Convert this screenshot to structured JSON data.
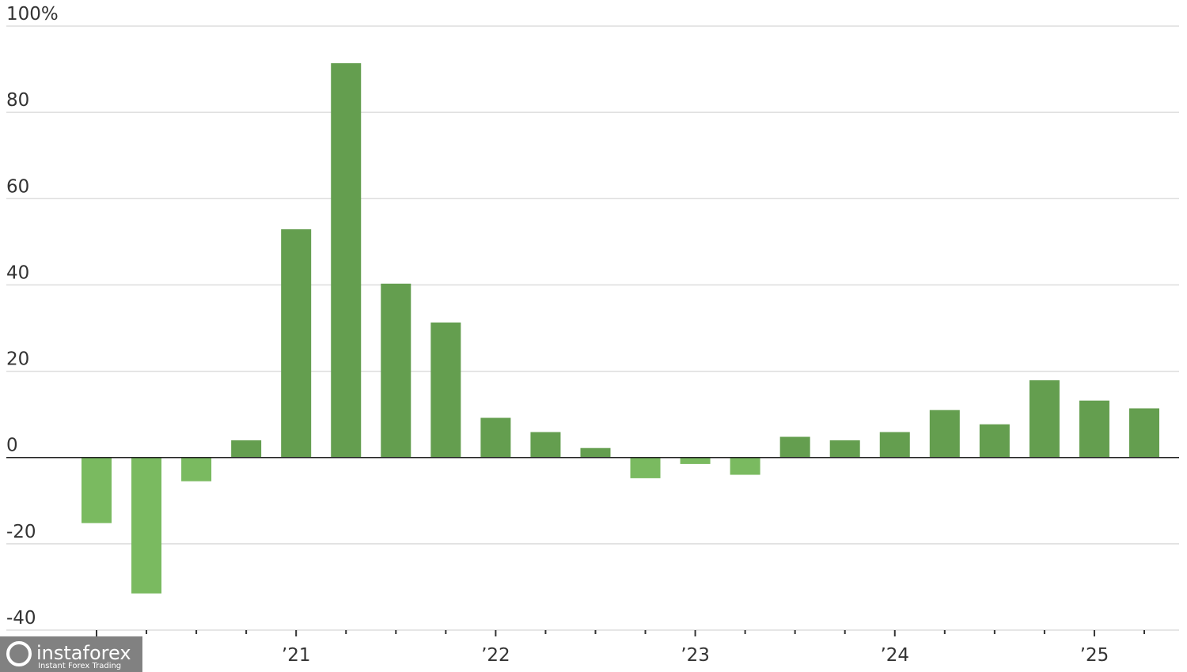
{
  "chart_data": {
    "type": "bar",
    "categories": [
      null,
      null,
      null,
      null,
      "’21",
      null,
      null,
      null,
      "’22",
      null,
      null,
      null,
      "’23",
      null,
      null,
      null,
      "’24",
      null,
      null,
      null,
      "’25",
      null
    ],
    "values": [
      -15.2,
      -31.5,
      -5.5,
      4.0,
      52.9,
      91.4,
      40.3,
      31.3,
      9.2,
      5.9,
      2.2,
      -4.8,
      -1.5,
      -4.0,
      4.8,
      4.0,
      5.9,
      11.0,
      7.7,
      17.9,
      13.2,
      11.4
    ],
    "color": "#649e4f",
    "negative_color": "#7aba60",
    "ylim": [
      -40,
      100
    ],
    "yticks": [
      -40,
      -20,
      0,
      20,
      40,
      60,
      80,
      {
        "value": 100,
        "label": "100%"
      }
    ],
    "grid": true
  },
  "watermark": {
    "brand": "instaforex",
    "tagline": "Instant Forex Trading"
  }
}
